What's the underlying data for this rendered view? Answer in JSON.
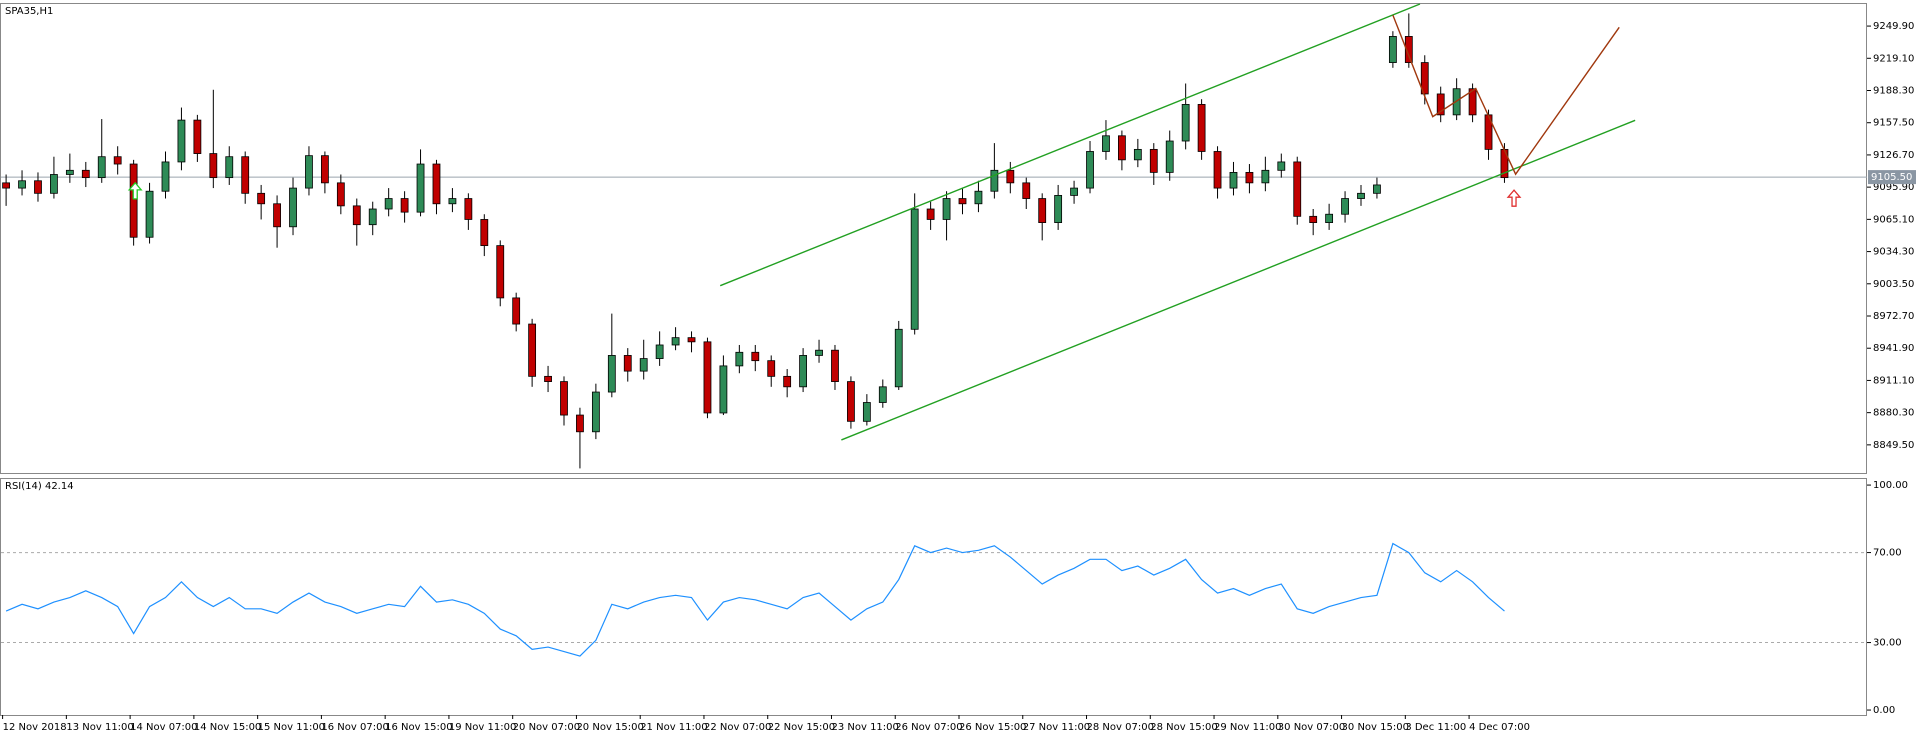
{
  "chart_data": {
    "type": "candlestick",
    "title": "SPA35,H1",
    "categories": [
      "12 Nov 2018",
      null,
      null,
      null,
      "13 Nov 11:00",
      null,
      null,
      null,
      "14 Nov 07:00",
      null,
      null,
      null,
      "14 Nov 15:00",
      null,
      null,
      null,
      "15 Nov 11:00",
      null,
      null,
      null,
      "16 Nov 07:00",
      null,
      null,
      null,
      "16 Nov 15:00",
      null,
      null,
      null,
      "19 Nov 11:00",
      null,
      null,
      null,
      "20 Nov 07:00",
      null,
      null,
      null,
      "20 Nov 15:00",
      null,
      null,
      null,
      "21 Nov 11:00",
      null,
      null,
      null,
      "22 Nov 07:00",
      null,
      null,
      null,
      "22 Nov 15:00",
      null,
      null,
      null,
      "23 Nov 11:00",
      null,
      null,
      null,
      "26 Nov 07:00",
      null,
      null,
      null,
      "26 Nov 15:00",
      null,
      null,
      null,
      "27 Nov 11:00",
      null,
      null,
      null,
      "28 Nov 07:00",
      null,
      null,
      null,
      "28 Nov 15:00",
      null,
      null,
      null,
      "29 Nov 11:00",
      null,
      null,
      null,
      "30 Nov 07:00",
      null,
      null,
      null,
      "30 Nov 15:00",
      null,
      null,
      null,
      "3 Dec 11:00",
      null,
      null,
      null,
      "4 Dec 07:00",
      null,
      null
    ],
    "open": [
      9100,
      9095,
      9102,
      9090,
      9108,
      9112,
      9105,
      9125,
      9118,
      9048,
      9092,
      9120,
      9160,
      9128,
      9105,
      9125,
      9090,
      9080,
      9058,
      9095,
      9126,
      9100,
      9078,
      9060,
      9075,
      9085,
      9072,
      9118,
      9080,
      9085,
      9065,
      9040,
      8990,
      8965,
      8915,
      8910,
      8878,
      8862,
      8900,
      8935,
      8920,
      8932,
      8945,
      8952,
      8948,
      8880,
      8925,
      8938,
      8930,
      8915,
      8905,
      8935,
      8940,
      8910,
      8872,
      8890,
      8905,
      8960,
      9075,
      9065,
      9085,
      9080,
      9092,
      9112,
      9100,
      9085,
      9062,
      9088,
      9095,
      9130,
      9145,
      9122,
      9132,
      9110,
      9140,
      9175,
      9130,
      9095,
      9110,
      9100,
      9112,
      9120,
      9068,
      9062,
      9070,
      9085,
      9090,
      9215,
      9240,
      9215,
      9185,
      9165,
      9190,
      9165,
      9132
    ],
    "high": [
      9108,
      9112,
      9110,
      9125,
      9128,
      9120,
      9161,
      9135,
      9122,
      9100,
      9130,
      9172,
      9165,
      9189,
      9135,
      9130,
      9098,
      9088,
      9105,
      9135,
      9130,
      9108,
      9085,
      9082,
      9095,
      9092,
      9132,
      9122,
      9095,
      9090,
      9070,
      9045,
      8995,
      8970,
      8925,
      8915,
      8885,
      8908,
      8975,
      8942,
      8950,
      8958,
      8962,
      8958,
      8952,
      8935,
      8945,
      8945,
      8935,
      8922,
      8942,
      8950,
      8945,
      8915,
      8898,
      8912,
      8968,
      9090,
      9082,
      9092,
      9095,
      9102,
      9138,
      9120,
      9105,
      9090,
      9098,
      9102,
      9140,
      9160,
      9150,
      9142,
      9138,
      9150,
      9195,
      9180,
      9135,
      9120,
      9118,
      9125,
      9128,
      9125,
      9075,
      9080,
      9092,
      9098,
      9105,
      9245,
      9262,
      9222,
      9192,
      9200,
      9195,
      9170,
      9138
    ],
    "low": [
      9078,
      9088,
      9082,
      9085,
      9100,
      9096,
      9100,
      9108,
      9040,
      9042,
      9085,
      9112,
      9120,
      9095,
      9098,
      9080,
      9065,
      9038,
      9050,
      9088,
      9090,
      9070,
      9040,
      9050,
      9068,
      9062,
      9068,
      9070,
      9072,
      9055,
      9030,
      8982,
      8958,
      8905,
      8900,
      8868,
      8827,
      8855,
      8895,
      8910,
      8912,
      8925,
      8940,
      8938,
      8875,
      8878,
      8918,
      8920,
      8905,
      8895,
      8900,
      8928,
      8902,
      8865,
      8868,
      8885,
      8902,
      8955,
      9055,
      9045,
      9070,
      9072,
      9085,
      9090,
      9075,
      9045,
      9055,
      9080,
      9090,
      9122,
      9112,
      9115,
      9098,
      9102,
      9132,
      9122,
      9085,
      9088,
      9090,
      9092,
      9105,
      9060,
      9050,
      9055,
      9062,
      9078,
      9085,
      9210,
      9210,
      9175,
      9158,
      9160,
      9158,
      9122,
      9100
    ],
    "close": [
      9095,
      9102,
      9090,
      9108,
      9112,
      9105,
      9125,
      9118,
      9048,
      9092,
      9120,
      9160,
      9128,
      9105,
      9125,
      9090,
      9080,
      9058,
      9095,
      9126,
      9100,
      9078,
      9060,
      9075,
      9085,
      9072,
      9118,
      9080,
      9085,
      9065,
      9040,
      8990,
      8965,
      8915,
      8910,
      8878,
      8862,
      8900,
      8935,
      8920,
      8932,
      8945,
      8952,
      8948,
      8880,
      8925,
      8938,
      8930,
      8915,
      8905,
      8935,
      8940,
      8910,
      8872,
      8890,
      8905,
      8960,
      9075,
      9065,
      9085,
      9080,
      9092,
      9112,
      9100,
      9085,
      9062,
      9088,
      9095,
      9130,
      9145,
      9122,
      9132,
      9110,
      9140,
      9175,
      9130,
      9095,
      9110,
      9100,
      9112,
      9120,
      9068,
      9062,
      9070,
      9085,
      9090,
      9098,
      9240,
      9215,
      9185,
      9165,
      9190,
      9165,
      9132,
      9105
    ],
    "up_color": "#2e8b57",
    "down_color": "#c00000",
    "ylim": [
      8822.6,
      9271
    ],
    "yticks": [
      {
        "value": 8849.5,
        "label": "8849.50"
      },
      {
        "value": 8880.3,
        "label": "8880.30"
      },
      {
        "value": 8911.1,
        "label": "8911.10"
      },
      {
        "value": 8941.9,
        "label": "8941.90"
      },
      {
        "value": 8972.7,
        "label": "8972.70"
      },
      {
        "value": 9003.5,
        "label": "9003.50"
      },
      {
        "value": 9034.3,
        "label": "9034.30"
      },
      {
        "value": 9065.1,
        "label": "9065.10"
      },
      {
        "value": 9095.9,
        "label": "9095.90"
      },
      {
        "value": 9126.7,
        "label": "9126.70"
      },
      {
        "value": 9157.5,
        "label": "9157.50"
      },
      {
        "value": 9188.3,
        "label": "9188.30"
      },
      {
        "value": 9219.1,
        "label": "9219.10"
      },
      {
        "value": 9249.9,
        "label": "9249.90"
      }
    ],
    "current_price": {
      "value": 9105.5,
      "label": "9105.50"
    },
    "trendlines": [
      {
        "color": "#22a022",
        "points": [
          [
            44.8,
            9001.7
          ],
          [
            88.7,
            9271
          ]
        ]
      },
      {
        "color": "#22a022",
        "points": [
          [
            52.4,
            8854.2
          ],
          [
            102.2,
            9159.8
          ]
        ]
      },
      {
        "color": "#a0380e",
        "points": [
          [
            87.0,
            9260.4
          ],
          [
            89.5,
            9163.3
          ],
          [
            92.2,
            9190.2
          ],
          [
            94.7,
            9108.3
          ],
          [
            101.2,
            9248.7
          ]
        ]
      }
    ],
    "arrows": [
      {
        "color": "#22cc22",
        "x": 8.1,
        "y": 9100
      },
      {
        "color": "#e03030",
        "x": 94.6,
        "y": 9093
      }
    ],
    "indicator": {
      "type": "line",
      "label": "RSI(14) 42.14",
      "color": "#1e90ff",
      "values": [
        44,
        47,
        45,
        48,
        50,
        53,
        50,
        46,
        34,
        46,
        50,
        57,
        50,
        46,
        50,
        45,
        45,
        43,
        48,
        52,
        48,
        46,
        43,
        45,
        47,
        46,
        55,
        48,
        49,
        47,
        43,
        36,
        33,
        27,
        28,
        26,
        24,
        31,
        47,
        45,
        48,
        50,
        51,
        50,
        40,
        48,
        50,
        49,
        47,
        45,
        50,
        52,
        46,
        40,
        45,
        48,
        58,
        73,
        70,
        72,
        70,
        71,
        73,
        68,
        62,
        56,
        60,
        63,
        67,
        67,
        62,
        64,
        60,
        63,
        67,
        58,
        52,
        54,
        51,
        54,
        56,
        45,
        43,
        46,
        48,
        50,
        51,
        74,
        70,
        61,
        57,
        62,
        57,
        50,
        44
      ],
      "ylim": [
        -2.2,
        102.7
      ],
      "yticks": [
        {
          "value": 100,
          "label": "100.00"
        },
        {
          "value": 70,
          "label": "70.00"
        },
        {
          "value": 30,
          "label": "30.00"
        },
        {
          "value": 0,
          "label": "0.00"
        }
      ],
      "levels": [
        30,
        70
      ]
    }
  }
}
